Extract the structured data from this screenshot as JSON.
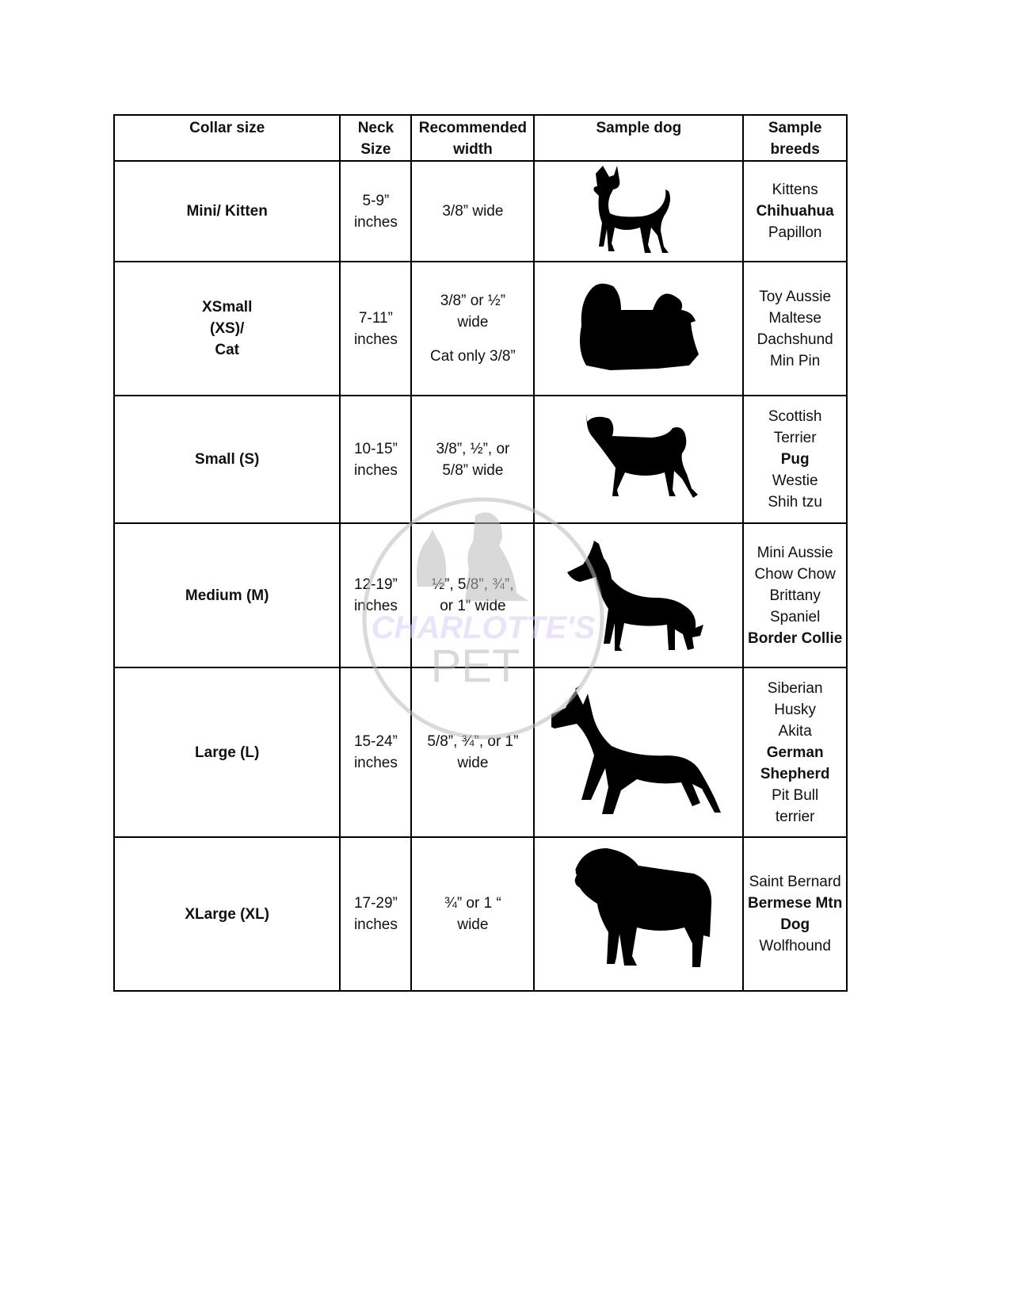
{
  "headers": [
    "Collar size",
    "Neck Size",
    "Recommended width",
    "Sample dog",
    "Sample breeds"
  ],
  "rows": [
    {
      "size": "Mini/ Kitten",
      "neck": [
        "5-9”",
        "inches"
      ],
      "width": [
        "3/8” wide"
      ],
      "dog_icon": "chihuahua-silhouette-icon",
      "breeds": [
        {
          "t": "Kittens",
          "b": false
        },
        {
          "t": "Chihuahua",
          "b": true
        },
        {
          "t": "Papillon",
          "b": false
        }
      ]
    },
    {
      "size": "XSmall (XS)/ Cat",
      "neck": [
        "7-11”",
        "inches"
      ],
      "width": [
        "3/8” or ½”",
        "wide",
        "",
        "Cat only 3/8”"
      ],
      "dog_icon": "maltese-silhouette-icon",
      "breeds": [
        {
          "t": "Toy Aussie",
          "b": false
        },
        {
          "t": "Maltese",
          "b": false
        },
        {
          "t": "Dachshund",
          "b": false
        },
        {
          "t": "Min Pin",
          "b": false
        }
      ]
    },
    {
      "size": "Small (S)",
      "neck": [
        "10-15”",
        "inches"
      ],
      "width": [
        "3/8”, ½”, or",
        "5/8” wide"
      ],
      "dog_icon": "pug-silhouette-icon",
      "breeds": [
        {
          "t": "Scottish",
          "b": false
        },
        {
          "t": "Terrier",
          "b": false
        },
        {
          "t": "Pug",
          "b": true
        },
        {
          "t": "Westie",
          "b": false
        },
        {
          "t": "Shih tzu",
          "b": false
        }
      ]
    },
    {
      "size": "Medium (M)",
      "neck": [
        "12-19”",
        "inches"
      ],
      "width": [
        "½”, 5/8”, ¾”,",
        "or 1” wide"
      ],
      "dog_icon": "border-collie-silhouette-icon",
      "breeds": [
        {
          "t": "Mini Aussie",
          "b": false
        },
        {
          "t": "Chow Chow",
          "b": false
        },
        {
          "t": "Brittany",
          "b": false
        },
        {
          "t": "Spaniel",
          "b": false
        },
        {
          "t": "Border Collie",
          "b": true
        }
      ]
    },
    {
      "size": "Large (L)",
      "neck": [
        "15-24”",
        "inches"
      ],
      "width": [
        "5/8”, ¾”, or 1”",
        "wide"
      ],
      "dog_icon": "german-shepherd-silhouette-icon",
      "breeds": [
        {
          "t": "Siberian",
          "b": false
        },
        {
          "t": "Husky",
          "b": false
        },
        {
          "t": "Akita",
          "b": false
        },
        {
          "t": "German",
          "b": true
        },
        {
          "t": "Shepherd",
          "b": true
        },
        {
          "t": "Pit Bull",
          "b": false
        },
        {
          "t": "terrier",
          "b": false
        }
      ]
    },
    {
      "size": "XLarge (XL)",
      "neck": [
        "17-29”",
        "inches"
      ],
      "width": [
        "¾” or 1 “",
        "wide"
      ],
      "dog_icon": "bernese-silhouette-icon",
      "breeds": [
        {
          "t": "Saint Bernard",
          "b": false
        },
        {
          "t": "Bermese Mtn",
          "b": true
        },
        {
          "t": "Dog",
          "b": true
        },
        {
          "t": "Wolfhound",
          "b": false
        }
      ]
    }
  ],
  "watermark": {
    "line1": "CHARLOTTE'S",
    "line2": "PET",
    "accent": "#d9cdf5",
    "gray": "#bbbbbb"
  }
}
